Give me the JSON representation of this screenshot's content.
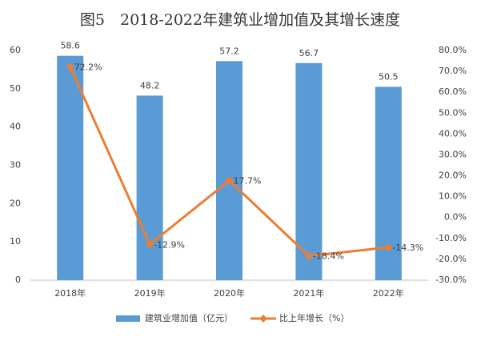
{
  "chart_data": {
    "type": "bar",
    "title": "图5　2018-2022年建筑业增加值及其增长速度",
    "categories": [
      "2018年",
      "2019年",
      "2020年",
      "2021年",
      "2022年"
    ],
    "series": [
      {
        "name": "建筑业增加值（亿元）",
        "type": "bar",
        "color": "#5b9bd5",
        "values": [
          58.6,
          48.2,
          57.2,
          56.7,
          50.5
        ]
      },
      {
        "name": "比上年增长（%）",
        "type": "line",
        "axis": "y2",
        "color": "#ed7d31",
        "values": [
          72.2,
          -12.9,
          17.7,
          -18.4,
          -14.3
        ],
        "value_labels": [
          "72.2%",
          "-12.9%",
          "17.7%",
          "-18.4%",
          "-14.3%"
        ]
      }
    ],
    "ylim": [
      0,
      60
    ],
    "yticks": [
      0,
      10,
      20,
      30,
      40,
      50,
      60
    ],
    "y2lim": [
      -30,
      80
    ],
    "y2ticks": [
      {
        "value": -30,
        "label": "-30.0%"
      },
      {
        "value": -20,
        "label": "-20.0%"
      },
      {
        "value": -10,
        "label": "-10.0%"
      },
      {
        "value": 0,
        "label": "0.0%"
      },
      {
        "value": 10,
        "label": "10.0%"
      },
      {
        "value": 20,
        "label": "20.0%"
      },
      {
        "value": 30,
        "label": "30.0%"
      },
      {
        "value": 40,
        "label": "40.0%"
      },
      {
        "value": 50,
        "label": "50.0%"
      },
      {
        "value": 60,
        "label": "60.0%"
      },
      {
        "value": 70,
        "label": "70.0%"
      },
      {
        "value": 80,
        "label": "80.0%"
      }
    ],
    "grid": false,
    "legend": "bottom"
  }
}
